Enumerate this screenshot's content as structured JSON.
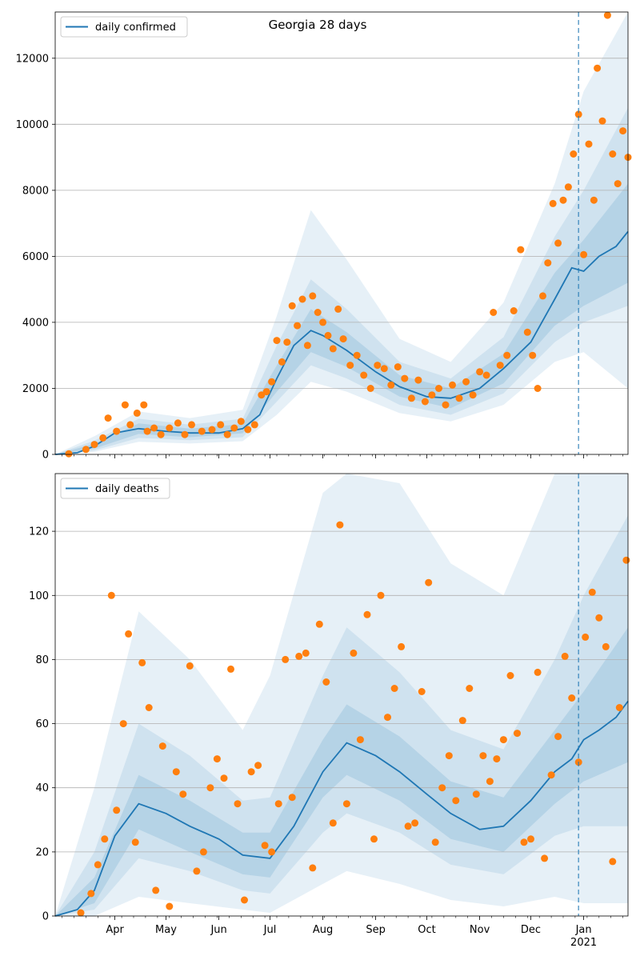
{
  "title": "Georgia 28 days",
  "colors": {
    "line": "#1f77b4",
    "points": "#ff7f0e",
    "band": "#1f77b4",
    "grid": "#b0b0b0"
  },
  "chart_data": [
    {
      "type": "line",
      "title": "Georgia 28 days",
      "legend": "daily confirmed",
      "legend_position": "top-left",
      "ylim": [
        0,
        13400
      ],
      "yticks": [
        0,
        2000,
        4000,
        6000,
        8000,
        10000,
        12000
      ],
      "xlim": [
        "2020-02-26",
        "2021-01-27"
      ],
      "x_month_ticks": [
        {
          "date": "2020-04-01",
          "label": "Apr"
        },
        {
          "date": "2020-05-01",
          "label": "May"
        },
        {
          "date": "2020-06-01",
          "label": "Jun"
        },
        {
          "date": "2020-07-01",
          "label": "Jul"
        },
        {
          "date": "2020-08-01",
          "label": "Aug"
        },
        {
          "date": "2020-09-01",
          "label": "Sep"
        },
        {
          "date": "2020-10-01",
          "label": "Oct"
        },
        {
          "date": "2020-11-01",
          "label": "Nov"
        },
        {
          "date": "2020-12-01",
          "label": "Dec"
        },
        {
          "date": "2021-01-01",
          "label": "Jan\n2021"
        }
      ],
      "vline_date": "2020-12-29",
      "grid": "horizontal",
      "line": {
        "name": "daily confirmed",
        "x": [
          "2020-02-26",
          "2020-03-10",
          "2020-03-20",
          "2020-04-01",
          "2020-04-15",
          "2020-05-01",
          "2020-05-15",
          "2020-06-01",
          "2020-06-15",
          "2020-06-25",
          "2020-07-05",
          "2020-07-15",
          "2020-07-25",
          "2020-08-01",
          "2020-08-15",
          "2020-09-01",
          "2020-09-15",
          "2020-10-01",
          "2020-10-15",
          "2020-11-01",
          "2020-11-15",
          "2020-12-01",
          "2020-12-15",
          "2020-12-25",
          "2021-01-01",
          "2021-01-10",
          "2021-01-20",
          "2021-01-27"
        ],
        "y": [
          0,
          50,
          250,
          650,
          780,
          700,
          650,
          650,
          780,
          1200,
          2300,
          3300,
          3750,
          3600,
          3150,
          2500,
          2050,
          1750,
          1700,
          2000,
          2600,
          3400,
          4700,
          5650,
          5550,
          6000,
          6300,
          6750
        ]
      },
      "band_inner": {
        "x": [
          "2020-02-26",
          "2020-03-20",
          "2020-04-15",
          "2020-05-15",
          "2020-06-15",
          "2020-07-05",
          "2020-07-25",
          "2020-08-15",
          "2020-09-15",
          "2020-10-15",
          "2020-11-15",
          "2020-12-15",
          "2021-01-01",
          "2021-01-27"
        ],
        "lower": [
          0,
          180,
          620,
          520,
          640,
          1900,
          3100,
          2650,
          1750,
          1400,
          2150,
          3900,
          4500,
          5200
        ],
        "upper": [
          0,
          320,
          940,
          780,
          920,
          2700,
          4400,
          3700,
          2400,
          2000,
          3050,
          5500,
          6500,
          8200
        ]
      },
      "band_middle": {
        "x": [
          "2020-02-26",
          "2020-03-20",
          "2020-04-15",
          "2020-05-15",
          "2020-06-15",
          "2020-07-05",
          "2020-07-25",
          "2020-08-15",
          "2020-09-15",
          "2020-10-15",
          "2020-11-15",
          "2020-12-15",
          "2021-01-01",
          "2021-01-27"
        ],
        "lower": [
          0,
          120,
          500,
          430,
          520,
          1600,
          2700,
          2300,
          1500,
          1200,
          1850,
          3400,
          4000,
          4500
        ],
        "upper": [
          0,
          420,
          1080,
          900,
          1080,
          3300,
          5300,
          4400,
          2800,
          2300,
          3550,
          6600,
          8000,
          10500
        ]
      },
      "band_outer": {
        "x": [
          "2020-02-26",
          "2020-03-20",
          "2020-04-15",
          "2020-05-15",
          "2020-06-15",
          "2020-07-05",
          "2020-07-25",
          "2020-08-15",
          "2020-09-15",
          "2020-10-15",
          "2020-11-15",
          "2020-12-15",
          "2021-01-01",
          "2021-01-27"
        ],
        "lower": [
          0,
          80,
          380,
          330,
          400,
          1200,
          2200,
          1900,
          1250,
          1000,
          1500,
          2800,
          3100,
          2000
        ],
        "upper": [
          0,
          550,
          1300,
          1100,
          1350,
          4200,
          7400,
          5900,
          3500,
          2800,
          4600,
          8200,
          11000,
          13400
        ]
      },
      "points": {
        "name": "observed",
        "x": [
          "2020-03-05",
          "2020-03-15",
          "2020-03-20",
          "2020-03-25",
          "2020-03-28",
          "2020-04-02",
          "2020-04-07",
          "2020-04-10",
          "2020-04-14",
          "2020-04-18",
          "2020-04-20",
          "2020-04-24",
          "2020-04-28",
          "2020-05-03",
          "2020-05-08",
          "2020-05-12",
          "2020-05-16",
          "2020-05-22",
          "2020-05-28",
          "2020-06-02",
          "2020-06-06",
          "2020-06-10",
          "2020-06-14",
          "2020-06-18",
          "2020-06-22",
          "2020-06-26",
          "2020-06-29",
          "2020-07-02",
          "2020-07-05",
          "2020-07-08",
          "2020-07-11",
          "2020-07-14",
          "2020-07-17",
          "2020-07-20",
          "2020-07-23",
          "2020-07-26",
          "2020-07-29",
          "2020-08-01",
          "2020-08-04",
          "2020-08-07",
          "2020-08-10",
          "2020-08-13",
          "2020-08-17",
          "2020-08-21",
          "2020-08-25",
          "2020-08-29",
          "2020-09-02",
          "2020-09-06",
          "2020-09-10",
          "2020-09-14",
          "2020-09-18",
          "2020-09-22",
          "2020-09-26",
          "2020-09-30",
          "2020-10-04",
          "2020-10-08",
          "2020-10-12",
          "2020-10-16",
          "2020-10-20",
          "2020-10-24",
          "2020-10-28",
          "2020-11-01",
          "2020-11-05",
          "2020-11-09",
          "2020-11-13",
          "2020-11-17",
          "2020-11-21",
          "2020-11-25",
          "2020-11-29",
          "2020-12-02",
          "2020-12-05",
          "2020-12-08",
          "2020-12-11",
          "2020-12-14",
          "2020-12-17",
          "2020-12-20",
          "2020-12-23",
          "2020-12-26",
          "2020-12-29",
          "2021-01-01",
          "2021-01-04",
          "2021-01-07",
          "2021-01-09",
          "2021-01-12",
          "2021-01-15",
          "2021-01-18",
          "2021-01-21",
          "2021-01-24",
          "2021-01-27"
        ],
        "y": [
          20,
          150,
          300,
          500,
          1100,
          700,
          1500,
          900,
          1250,
          1500,
          700,
          800,
          600,
          800,
          950,
          600,
          900,
          700,
          750,
          900,
          600,
          800,
          1000,
          750,
          900,
          1800,
          1900,
          2200,
          3450,
          2800,
          3400,
          4500,
          3900,
          4700,
          3300,
          4800,
          4300,
          4000,
          3600,
          3200,
          4400,
          3500,
          2700,
          3000,
          2400,
          2000,
          2700,
          2600,
          2100,
          2650,
          2300,
          1700,
          2250,
          1600,
          1800,
          2000,
          1500,
          2100,
          1700,
          2200,
          1800,
          2500,
          2400,
          4300,
          2700,
          3000,
          4350,
          6200,
          3700,
          3000,
          2000,
          4800,
          5800,
          7600,
          6400,
          7700,
          8100,
          9100,
          10300,
          6050,
          9400,
          7700,
          11700,
          10100,
          13300,
          9100,
          8200,
          9800,
          9000
        ]
      }
    },
    {
      "type": "line",
      "legend": "daily deaths",
      "legend_position": "top-left",
      "ylim": [
        0,
        138
      ],
      "yticks": [
        0,
        20,
        40,
        60,
        80,
        100,
        120
      ],
      "xlim": [
        "2020-02-26",
        "2021-01-27"
      ],
      "vline_date": "2020-12-29",
      "grid": "horizontal",
      "line": {
        "name": "daily deaths",
        "x": [
          "2020-02-26",
          "2020-03-10",
          "2020-03-20",
          "2020-04-01",
          "2020-04-15",
          "2020-05-01",
          "2020-05-15",
          "2020-06-01",
          "2020-06-15",
          "2020-07-01",
          "2020-07-15",
          "2020-08-01",
          "2020-08-15",
          "2020-09-01",
          "2020-09-15",
          "2020-10-01",
          "2020-10-15",
          "2020-11-01",
          "2020-11-15",
          "2020-12-01",
          "2020-12-15",
          "2020-12-25",
          "2021-01-01",
          "2021-01-10",
          "2021-01-20",
          "2021-01-27"
        ],
        "y": [
          0,
          2,
          8,
          25,
          35,
          32,
          28,
          24,
          19,
          18,
          28,
          45,
          54,
          50,
          45,
          38,
          32,
          27,
          28,
          36,
          45,
          49,
          55,
          58,
          62,
          67
        ]
      },
      "band_inner": {
        "x": [
          "2020-02-26",
          "2020-03-20",
          "2020-04-15",
          "2020-05-15",
          "2020-06-15",
          "2020-07-01",
          "2020-08-01",
          "2020-08-15",
          "2020-09-15",
          "2020-10-15",
          "2020-11-15",
          "2020-12-15",
          "2021-01-01",
          "2021-01-27"
        ],
        "lower": [
          0,
          4,
          27,
          20,
          13,
          12,
          37,
          44,
          36,
          24,
          20,
          35,
          42,
          48
        ],
        "upper": [
          0,
          12,
          44,
          36,
          26,
          26,
          55,
          66,
          56,
          42,
          37,
          58,
          70,
          90
        ]
      },
      "band_middle": {
        "x": [
          "2020-02-26",
          "2020-03-20",
          "2020-04-15",
          "2020-05-15",
          "2020-06-15",
          "2020-07-01",
          "2020-08-01",
          "2020-08-15",
          "2020-09-15",
          "2020-10-15",
          "2020-11-15",
          "2020-12-15",
          "2021-01-01",
          "2021-01-27"
        ],
        "lower": [
          0,
          2,
          18,
          14,
          8,
          7,
          26,
          32,
          26,
          16,
          13,
          25,
          28,
          28
        ],
        "upper": [
          0,
          20,
          60,
          50,
          36,
          37,
          75,
          90,
          76,
          58,
          52,
          80,
          100,
          125
        ]
      },
      "band_outer": {
        "x": [
          "2020-02-26",
          "2020-03-20",
          "2020-04-15",
          "2020-05-15",
          "2020-06-15",
          "2020-07-01",
          "2020-08-01",
          "2020-08-15",
          "2020-09-15",
          "2020-10-15",
          "2020-11-15",
          "2020-12-15",
          "2021-01-01",
          "2021-01-27"
        ],
        "lower": [
          0,
          0,
          6,
          4,
          2,
          1,
          10,
          14,
          10,
          5,
          3,
          6,
          4,
          4
        ],
        "upper": [
          0,
          40,
          95,
          80,
          58,
          75,
          132,
          138,
          135,
          110,
          100,
          138,
          138,
          138
        ]
      },
      "points": {
        "name": "observed",
        "x": [
          "2020-03-12",
          "2020-03-18",
          "2020-03-22",
          "2020-03-26",
          "2020-03-30",
          "2020-04-02",
          "2020-04-06",
          "2020-04-09",
          "2020-04-13",
          "2020-04-17",
          "2020-04-21",
          "2020-04-25",
          "2020-04-29",
          "2020-05-03",
          "2020-05-07",
          "2020-05-11",
          "2020-05-15",
          "2020-05-19",
          "2020-05-23",
          "2020-05-27",
          "2020-05-31",
          "2020-06-04",
          "2020-06-08",
          "2020-06-12",
          "2020-06-16",
          "2020-06-20",
          "2020-06-24",
          "2020-06-28",
          "2020-07-02",
          "2020-07-06",
          "2020-07-10",
          "2020-07-14",
          "2020-07-18",
          "2020-07-22",
          "2020-07-26",
          "2020-07-30",
          "2020-08-03",
          "2020-08-07",
          "2020-08-11",
          "2020-08-15",
          "2020-08-19",
          "2020-08-23",
          "2020-08-27",
          "2020-08-31",
          "2020-09-04",
          "2020-09-08",
          "2020-09-12",
          "2020-09-16",
          "2020-09-20",
          "2020-09-24",
          "2020-09-28",
          "2020-10-02",
          "2020-10-06",
          "2020-10-10",
          "2020-10-14",
          "2020-10-18",
          "2020-10-22",
          "2020-10-26",
          "2020-10-30",
          "2020-11-03",
          "2020-11-07",
          "2020-11-11",
          "2020-11-15",
          "2020-11-19",
          "2020-11-23",
          "2020-11-27",
          "2020-12-01",
          "2020-12-05",
          "2020-12-09",
          "2020-12-13",
          "2020-12-17",
          "2020-12-21",
          "2020-12-25",
          "2020-12-29",
          "2021-01-02",
          "2021-01-06",
          "2021-01-10",
          "2021-01-14",
          "2021-01-18",
          "2021-01-22",
          "2021-01-26"
        ],
        "y": [
          1,
          7,
          16,
          24,
          100,
          33,
          60,
          88,
          23,
          79,
          65,
          8,
          53,
          3,
          45,
          38,
          78,
          14,
          20,
          40,
          49,
          43,
          77,
          35,
          5,
          45,
          47,
          22,
          20,
          35,
          80,
          37,
          81,
          82,
          15,
          91,
          73,
          29,
          122,
          35,
          82,
          55,
          94,
          24,
          100,
          62,
          71,
          84,
          28,
          29,
          70,
          104,
          23,
          40,
          50,
          36,
          61,
          71,
          38,
          50,
          42,
          49,
          55,
          75,
          57,
          23,
          24,
          76,
          18,
          44,
          56,
          81,
          68,
          48,
          87,
          101,
          93,
          84,
          17,
          65,
          111
        ]
      }
    }
  ]
}
